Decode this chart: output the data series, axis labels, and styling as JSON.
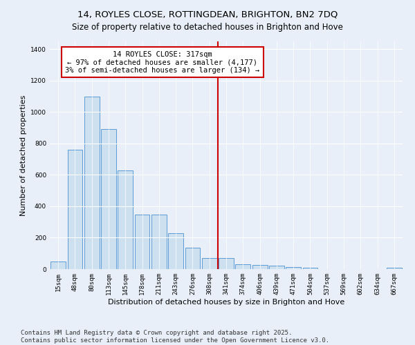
{
  "title1": "14, ROYLES CLOSE, ROTTINGDEAN, BRIGHTON, BN2 7DQ",
  "title2": "Size of property relative to detached houses in Brighton and Hove",
  "xlabel": "Distribution of detached houses by size in Brighton and Hove",
  "ylabel": "Number of detached properties",
  "categories": [
    "15sqm",
    "48sqm",
    "80sqm",
    "113sqm",
    "145sqm",
    "178sqm",
    "211sqm",
    "243sqm",
    "276sqm",
    "308sqm",
    "341sqm",
    "374sqm",
    "406sqm",
    "439sqm",
    "471sqm",
    "504sqm",
    "537sqm",
    "569sqm",
    "602sqm",
    "634sqm",
    "667sqm"
  ],
  "values": [
    50,
    760,
    1100,
    890,
    630,
    345,
    345,
    230,
    135,
    70,
    70,
    30,
    25,
    20,
    13,
    10,
    2,
    0,
    0,
    0,
    10
  ],
  "bar_color": "#cce0f0",
  "bar_edge_color": "#5b9bd5",
  "vline_color": "#cc0000",
  "annotation_text": "14 ROYLES CLOSE: 317sqm\n← 97% of detached houses are smaller (4,177)\n3% of semi-detached houses are larger (134) →",
  "annotation_box_color": "#ffffff",
  "annotation_box_edge": "#cc0000",
  "ylim": [
    0,
    1450
  ],
  "yticks": [
    0,
    200,
    400,
    600,
    800,
    1000,
    1200,
    1400
  ],
  "bg_color": "#e8eff8",
  "grid_color": "#ffffff",
  "footer1": "Contains HM Land Registry data © Crown copyright and database right 2025.",
  "footer2": "Contains public sector information licensed under the Open Government Licence v3.0.",
  "title1_fontsize": 9.5,
  "title2_fontsize": 8.5,
  "xlabel_fontsize": 8,
  "ylabel_fontsize": 8,
  "tick_fontsize": 6.5,
  "annotation_fontsize": 7.5,
  "footer_fontsize": 6.5
}
